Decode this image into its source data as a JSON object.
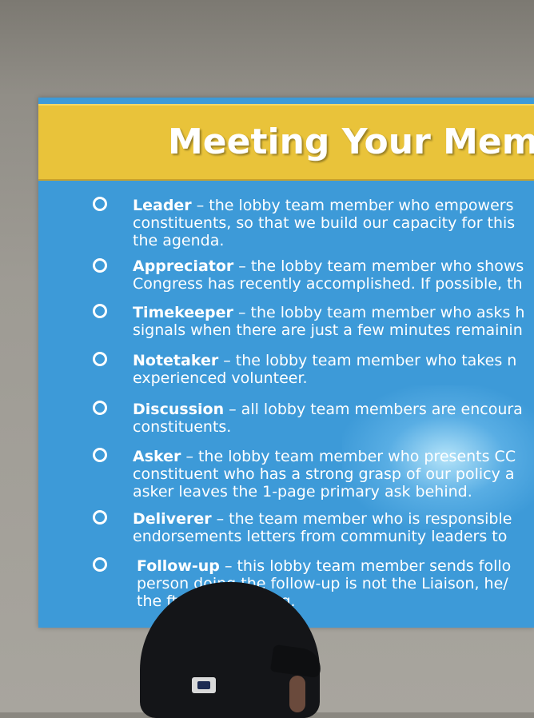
{
  "slide": {
    "title": "Meeting Your Mem",
    "items": [
      {
        "term": "Leader",
        "lines": [
          " – the lobby team member who empowers",
          "constituents, so that we build our capacity for this",
          "the agenda."
        ]
      },
      {
        "term": "Appreciator",
        "lines": [
          " – the lobby team member who shows",
          "Congress has recently accomplished.  If possible, th"
        ]
      },
      {
        "term": "Timekeeper",
        "lines": [
          " – the lobby team member who asks h",
          "signals when there are just a few minutes remainin"
        ]
      },
      {
        "term": "Notetaker",
        "lines": [
          " – the lobby team member who takes n",
          "experienced volunteer."
        ]
      },
      {
        "term": "Discussion",
        "lines": [
          " – all lobby team members are encoura",
          "constituents."
        ]
      },
      {
        "term": "Asker",
        "lines": [
          " – the lobby team member who presents CC",
          "constituent who has a strong grasp of our policy a",
          "asker leaves the 1-page primary ask behind."
        ]
      },
      {
        "term": "Deliverer",
        "lines": [
          " – the team member who is responsible",
          "endorsements letters from community leaders to"
        ]
      },
      {
        "term": "Follow-up",
        "lines": [
          " – this lobby team member sends follo",
          "person doing the follow-up is not the Liaison, he/",
          "the        fter the meeting."
        ]
      }
    ]
  },
  "colors": {
    "slide_background": "#3d9ad8",
    "title_band": "#e9c33a",
    "text": "#ffffff"
  },
  "foreground": {
    "cap_logo": "MLB"
  }
}
